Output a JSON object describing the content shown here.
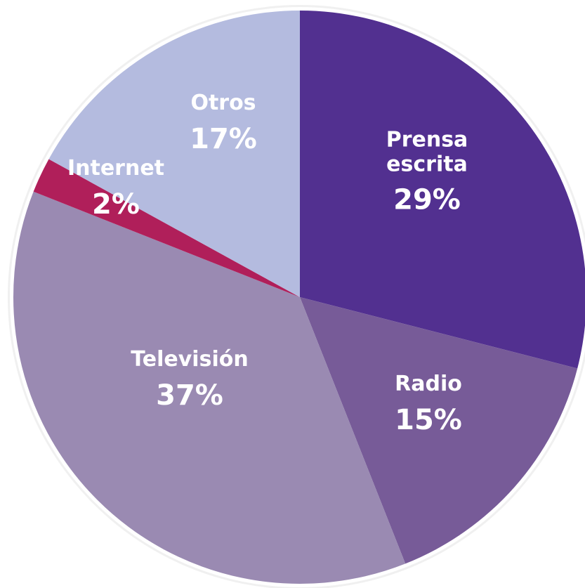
{
  "chart_data": {
    "type": "pie",
    "categories": [
      "Prensa escrita",
      "Radio",
      "Televisión",
      "Internet",
      "Otros"
    ],
    "values": [
      29,
      15,
      37,
      2,
      17
    ],
    "value_labels": [
      "29%",
      "15%",
      "37%",
      "2%",
      "17%"
    ],
    "colors": [
      "#523090",
      "#775b98",
      "#9a8ab2",
      "#b01f5a",
      "#b4bbdf"
    ]
  }
}
